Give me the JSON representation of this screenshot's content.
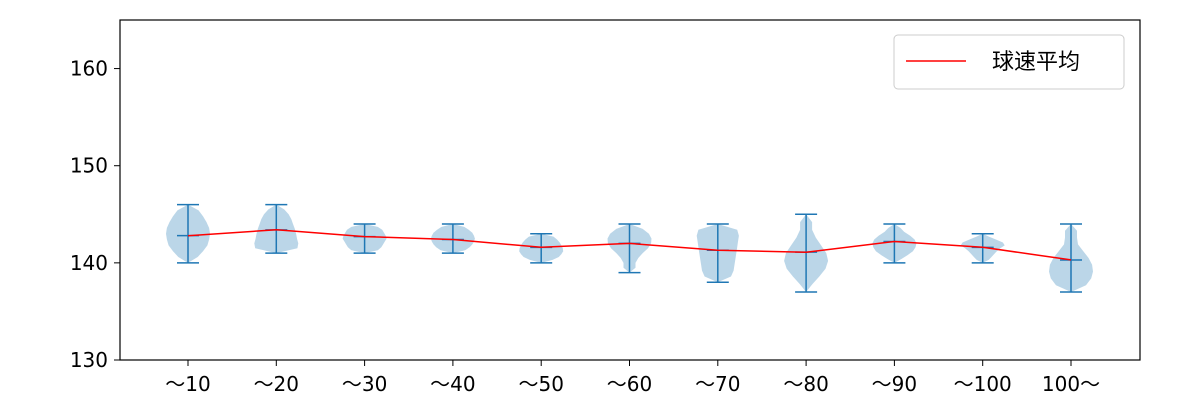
{
  "chart_data": {
    "type": "violin",
    "categories": [
      "～10",
      "～20",
      "～30",
      "～40",
      "～50",
      "～60",
      "～70",
      "～80",
      "～90",
      "～100",
      "100～"
    ],
    "ylim": [
      130,
      165
    ],
    "yticks": [
      130,
      140,
      150,
      160
    ],
    "ytick_labels": [
      "130",
      "140",
      "150",
      "160"
    ],
    "grid": false,
    "legend": {
      "position": "top-right",
      "entries": [
        "球速平均"
      ]
    },
    "colors": {
      "violin_fill": "#1f77b4",
      "violin_alpha": 0.3,
      "whisker": "#1f77b4",
      "mean_line": "#ff0000"
    },
    "series": [
      {
        "name": "球速平均",
        "values": [
          142.8,
          143.4,
          142.7,
          142.4,
          141.6,
          142.0,
          141.3,
          141.1,
          142.2,
          141.6,
          140.3
        ]
      }
    ],
    "distribution": [
      {
        "min": 140,
        "max": 146,
        "mean": 142.8,
        "shape": [
          0.22,
          0.34,
          0.44,
          0.48,
          0.5,
          0.48,
          0.42,
          0.34,
          0.24
        ]
      },
      {
        "min": 141,
        "max": 146,
        "mean": 143.4,
        "shape": [
          0.48,
          0.5,
          0.47,
          0.45,
          0.42,
          0.38,
          0.34,
          0.28,
          0.18
        ]
      },
      {
        "min": 141,
        "max": 144,
        "mean": 142.7,
        "shape": [
          0.3,
          0.38,
          0.42,
          0.46,
          0.5,
          0.48,
          0.44,
          0.4,
          0.3
        ]
      },
      {
        "min": 141,
        "max": 144,
        "mean": 142.4,
        "shape": [
          0.28,
          0.38,
          0.44,
          0.48,
          0.5,
          0.48,
          0.44,
          0.36,
          0.26
        ]
      },
      {
        "min": 140,
        "max": 143,
        "mean": 141.6,
        "shape": [
          0.26,
          0.4,
          0.46,
          0.5,
          0.49,
          0.46,
          0.42,
          0.36,
          0.28
        ]
      },
      {
        "min": 139,
        "max": 144,
        "mean": 142.0,
        "shape": [
          0.06,
          0.12,
          0.2,
          0.3,
          0.42,
          0.49,
          0.5,
          0.44,
          0.3
        ]
      },
      {
        "min": 138,
        "max": 144,
        "mean": 141.3,
        "shape": [
          0.3,
          0.36,
          0.38,
          0.4,
          0.42,
          0.44,
          0.46,
          0.48,
          0.44
        ]
      },
      {
        "min": 137,
        "max": 145,
        "mean": 141.1,
        "shape": [
          0.14,
          0.3,
          0.44,
          0.5,
          0.46,
          0.34,
          0.22,
          0.12,
          0.04
        ]
      },
      {
        "min": 140,
        "max": 144,
        "mean": 142.2,
        "shape": [
          0.16,
          0.3,
          0.42,
          0.48,
          0.5,
          0.46,
          0.36,
          0.22,
          0.1
        ]
      },
      {
        "min": 140,
        "max": 143,
        "mean": 141.6,
        "shape": [
          0.12,
          0.2,
          0.26,
          0.32,
          0.4,
          0.5,
          0.46,
          0.3,
          0.14
        ]
      },
      {
        "min": 137,
        "max": 144,
        "mean": 140.3,
        "shape": [
          0.34,
          0.46,
          0.5,
          0.48,
          0.4,
          0.28,
          0.16,
          0.08,
          0.04
        ]
      }
    ]
  }
}
